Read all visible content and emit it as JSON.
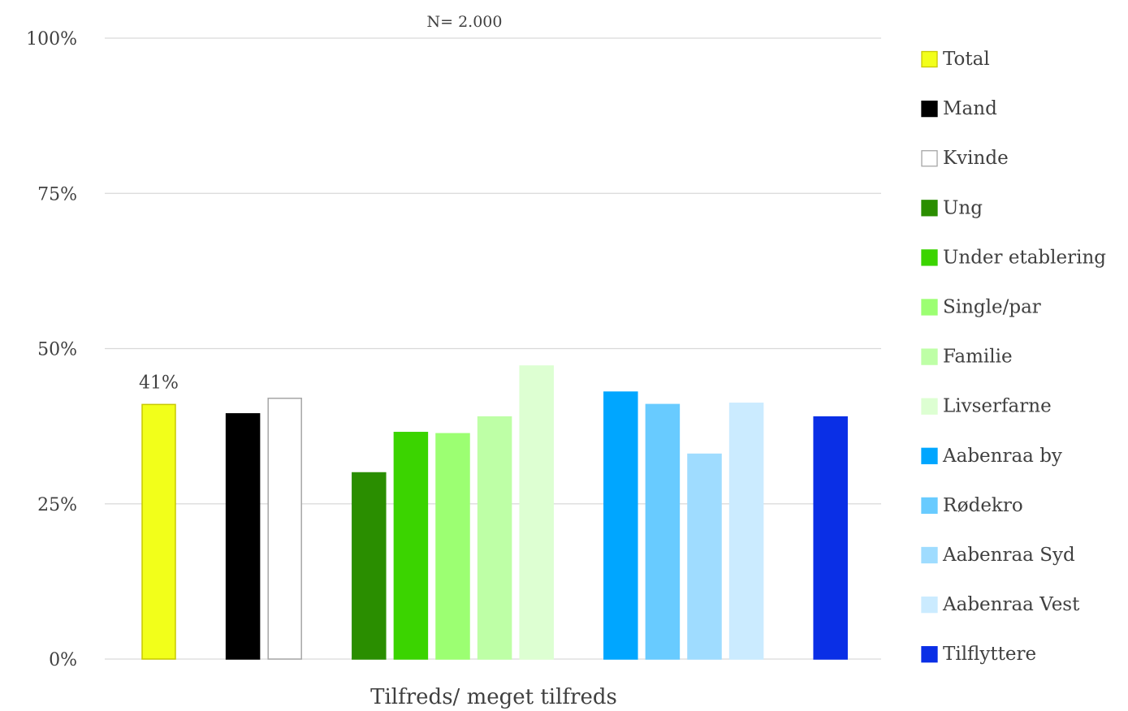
{
  "chart_data": {
    "type": "bar",
    "note": "N= 2.000",
    "xlabel": "Tilfreds/ meget tilfreds",
    "ylim": [
      0,
      100
    ],
    "y_ticks": [
      "0%",
      "25%",
      "50%",
      "75%",
      "100%"
    ],
    "y_tick_values": [
      0,
      25,
      50,
      75,
      100
    ],
    "grid": true,
    "legend_position": "right",
    "series": [
      {
        "name": "Total",
        "value": 41,
        "color": "#F2FF1A",
        "border": "#C8C800",
        "label": "41%",
        "group": 0
      },
      {
        "name": "Mand",
        "value": 39.5,
        "color": "#000000",
        "border": "#000000",
        "group": 1
      },
      {
        "name": "Kvinde",
        "value": 42,
        "color": "#FFFFFF",
        "border": "#A6A6A6",
        "group": 1
      },
      {
        "name": "Ung",
        "value": 30,
        "color": "#2A8E00",
        "border": "#2A8E00",
        "group": 2
      },
      {
        "name": "Under etablering",
        "value": 36.5,
        "color": "#3BD400",
        "border": "#3BD400",
        "group": 2
      },
      {
        "name": "Single/par",
        "value": 36.3,
        "color": "#9CFF72",
        "border": "#9CFF72",
        "group": 2
      },
      {
        "name": "Familie",
        "value": 39,
        "color": "#BEFFA6",
        "border": "#BEFFA6",
        "group": 2
      },
      {
        "name": "Livserfarne",
        "value": 47.2,
        "color": "#DDFFD2",
        "border": "#DDFFD2",
        "group": 2
      },
      {
        "name": "Aabenraa by",
        "value": 43,
        "color": "#00A6FF",
        "border": "#00A6FF",
        "group": 3
      },
      {
        "name": "Rødekro",
        "value": 41,
        "color": "#68CBFF",
        "border": "#68CBFF",
        "group": 3
      },
      {
        "name": "Aabenraa Syd",
        "value": 33,
        "color": "#9FDCFF",
        "border": "#9FDCFF",
        "group": 3
      },
      {
        "name": "Aabenraa Vest",
        "value": 41.2,
        "color": "#CBEBFF",
        "border": "#CBEBFF",
        "group": 3
      },
      {
        "name": "Tilflyttere",
        "value": 39,
        "color": "#0A2FE6",
        "border": "#0A2FE6",
        "group": 4
      }
    ]
  }
}
